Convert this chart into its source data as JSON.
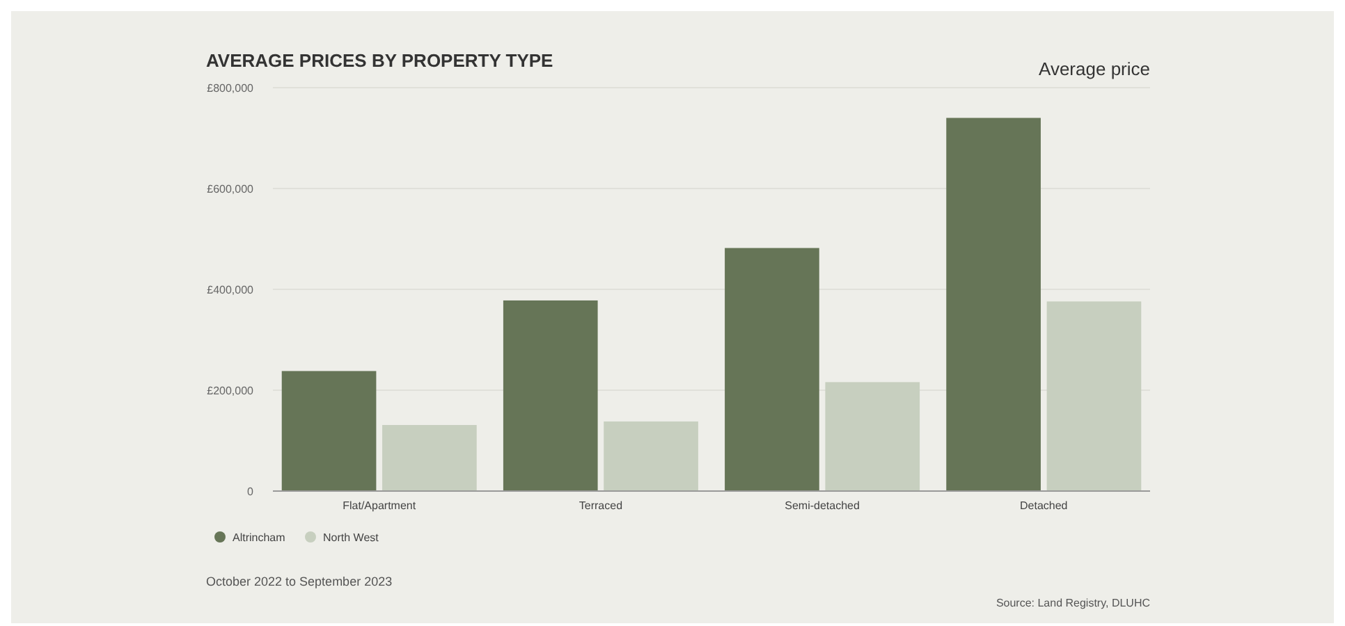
{
  "chart_data": {
    "type": "bar",
    "title": "AVERAGE PRICES BY PROPERTY TYPE",
    "subtitle": "Average price",
    "categories": [
      "Flat/Apartment",
      "Terraced",
      "Semi-detached",
      "Detached"
    ],
    "series": [
      {
        "name": "Altrincham",
        "color": "#667557",
        "values": [
          238000,
          378000,
          482000,
          740000
        ]
      },
      {
        "name": "North West",
        "color": "#c7cfbf",
        "values": [
          131000,
          138000,
          216000,
          376000
        ]
      }
    ],
    "ylim": [
      0,
      800000
    ],
    "yticks": [
      {
        "value": 0,
        "label": "0"
      },
      {
        "value": 200000,
        "label": "£200,000"
      },
      {
        "value": 400000,
        "label": "£400,000"
      },
      {
        "value": 600000,
        "label": "£600,000"
      },
      {
        "value": 800000,
        "label": "£800,000"
      }
    ],
    "grid": "y",
    "legend": "bottom left",
    "annotations": [
      "October 2022 to September 2023",
      "Source: Land Registry, DLUHC"
    ]
  }
}
